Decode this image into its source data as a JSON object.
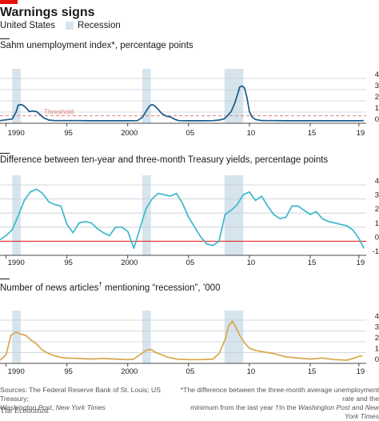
{
  "header": {
    "title": "Warnings signs",
    "legend_country": "United States",
    "legend_recession": "Recession"
  },
  "colors": {
    "recession_band": "#d6e4ee",
    "grid": "#c7ccd1",
    "zero_line": "#e3120b",
    "threshold": "#e07d7d",
    "sahm_line": "#155a8a",
    "yield_line": "#3bb8cd",
    "news_line": "#d8a64a",
    "brand_red": "#e3120b"
  },
  "recessions": [
    [
      1990.5,
      1991.2
    ],
    [
      2001.2,
      2001.9
    ],
    [
      2007.95,
      2009.5
    ]
  ],
  "x_ticks": [
    {
      "year": 1990,
      "label": "1990"
    },
    {
      "year": 1995,
      "label": "95"
    },
    {
      "year": 2000,
      "label": "2000"
    },
    {
      "year": 2005,
      "label": "05"
    },
    {
      "year": 2010,
      "label": "10"
    },
    {
      "year": 2015,
      "label": "15"
    },
    {
      "year": 2019,
      "label": "19"
    }
  ],
  "chart_data": [
    {
      "type": "line",
      "title": "Sahm unemployment index*, percentage points",
      "xlim": [
        1989.5,
        2019.6
      ],
      "ylim": [
        -0.2,
        4
      ],
      "yticks": [
        "0",
        "1",
        "2",
        "3",
        "4"
      ],
      "annotation": "Threshold",
      "threshold": 0.5,
      "series": [
        {
          "x": [
            1989.5,
            1990.5,
            1990.8,
            1991.0,
            1991.3,
            1991.6,
            1991.9,
            1992.2,
            1992.5,
            1992.8,
            1993.1,
            1993.5,
            1994.0,
            1995.0,
            1996.0,
            1997.0,
            1998.0,
            1999.0,
            2000.0,
            2000.8,
            2001.2,
            2001.5,
            2001.8,
            2002.0,
            2002.2,
            2002.5,
            2002.8,
            2003.2,
            2003.5,
            2003.9,
            2004.2,
            2005.0,
            2006.0,
            2007.0,
            2007.5,
            2007.9,
            2008.2,
            2008.5,
            2008.8,
            2009.0,
            2009.2,
            2009.4,
            2009.6,
            2009.8,
            2010.0,
            2010.2,
            2010.5,
            2011.0,
            2012.0,
            2013.0,
            2014.0,
            2015.0,
            2016.0,
            2017.0,
            2018.0,
            2019.0,
            2019.4
          ],
          "y": [
            0.05,
            0.2,
            0.8,
            1.5,
            1.55,
            1.3,
            0.9,
            0.95,
            0.9,
            0.6,
            0.3,
            0.1,
            0.05,
            0.05,
            0.05,
            0.03,
            0.03,
            0.03,
            0.03,
            0.05,
            0.35,
            0.9,
            1.45,
            1.55,
            1.45,
            1.1,
            0.7,
            0.45,
            0.4,
            0.15,
            0.05,
            0.03,
            0.03,
            0.05,
            0.1,
            0.2,
            0.5,
            0.9,
            1.7,
            2.4,
            3.2,
            3.3,
            3.1,
            2.2,
            0.9,
            0.4,
            0.15,
            0.05,
            0.05,
            0.03,
            0.03,
            0.03,
            0.03,
            0.03,
            0.03,
            0.03,
            0.05
          ]
        }
      ]
    },
    {
      "type": "line",
      "title": "Difference between ten-year and three-month Treasury yields, percentage points",
      "xlim": [
        1989.5,
        2019.6
      ],
      "ylim": [
        -1,
        4
      ],
      "yticks": [
        "-1",
        "0",
        "1",
        "2",
        "3",
        "4"
      ],
      "series": [
        {
          "x": [
            1989.5,
            1990.0,
            1990.5,
            1991.0,
            1991.5,
            1992.0,
            1992.5,
            1993.0,
            1993.5,
            1994.0,
            1994.5,
            1995.0,
            1995.5,
            1996.0,
            1996.5,
            1997.0,
            1997.5,
            1998.0,
            1998.5,
            1999.0,
            1999.5,
            2000.0,
            2000.5,
            2001.0,
            2001.5,
            2002.0,
            2002.5,
            2003.0,
            2003.5,
            2004.0,
            2004.5,
            2005.0,
            2005.5,
            2006.0,
            2006.5,
            2007.0,
            2007.5,
            2008.0,
            2008.5,
            2009.0,
            2009.5,
            2010.0,
            2010.5,
            2011.0,
            2011.5,
            2012.0,
            2012.5,
            2013.0,
            2013.5,
            2014.0,
            2014.5,
            2015.0,
            2015.5,
            2016.0,
            2016.5,
            2017.0,
            2017.5,
            2018.0,
            2018.5,
            2019.0,
            2019.4
          ],
          "y": [
            0.1,
            0.4,
            0.8,
            1.8,
            2.9,
            3.5,
            3.7,
            3.4,
            2.8,
            2.6,
            2.5,
            1.2,
            0.6,
            1.3,
            1.4,
            1.3,
            0.9,
            0.6,
            0.4,
            1.0,
            1.0,
            0.7,
            -0.5,
            0.9,
            2.3,
            3.0,
            3.4,
            3.3,
            3.2,
            3.4,
            2.7,
            1.7,
            1.0,
            0.3,
            -0.2,
            -0.3,
            0.0,
            1.9,
            2.2,
            2.6,
            3.3,
            3.5,
            2.9,
            3.2,
            2.5,
            1.9,
            1.6,
            1.7,
            2.5,
            2.5,
            2.2,
            1.9,
            2.1,
            1.6,
            1.4,
            1.3,
            1.2,
            1.1,
            0.8,
            0.2,
            -0.5
          ]
        }
      ]
    },
    {
      "type": "line",
      "title": "Number of news articles† mentioning “recession”, ’000",
      "xlim": [
        1989.5,
        2019.6
      ],
      "ylim": [
        0,
        4
      ],
      "yticks": [
        "0",
        "1",
        "2",
        "3",
        "4"
      ],
      "series": [
        {
          "x": [
            1989.5,
            1990.0,
            1990.4,
            1990.8,
            1991.2,
            1991.6,
            1992.0,
            1992.5,
            1993.0,
            1993.5,
            1994.0,
            1994.5,
            1995.0,
            1996.0,
            1997.0,
            1998.0,
            1999.0,
            2000.0,
            2000.5,
            2001.0,
            2001.5,
            2001.9,
            2002.3,
            2002.8,
            2003.2,
            2004.0,
            2005.0,
            2006.0,
            2007.0,
            2007.5,
            2008.0,
            2008.3,
            2008.6,
            2008.9,
            2009.2,
            2009.6,
            2010.0,
            2010.5,
            2011.0,
            2011.5,
            2012.0,
            2013.0,
            2014.0,
            2015.0,
            2016.0,
            2017.0,
            2018.0,
            2018.5,
            2019.0,
            2019.3
          ],
          "y": [
            0.3,
            0.8,
            2.6,
            2.9,
            2.7,
            2.6,
            2.2,
            1.8,
            1.2,
            0.9,
            0.7,
            0.55,
            0.5,
            0.45,
            0.4,
            0.45,
            0.4,
            0.35,
            0.4,
            0.8,
            1.2,
            1.3,
            1.0,
            0.8,
            0.6,
            0.4,
            0.35,
            0.35,
            0.4,
            0.9,
            2.2,
            3.5,
            3.9,
            3.3,
            2.6,
            1.9,
            1.4,
            1.2,
            1.1,
            1.0,
            0.9,
            0.6,
            0.5,
            0.4,
            0.5,
            0.35,
            0.3,
            0.45,
            0.65,
            0.7
          ]
        }
      ]
    }
  ],
  "footer": {
    "sources_1": "Sources: The Federal Reserve Bank of St. Louis; US Treasury;",
    "sources_2a": "Washington Post",
    "sources_2b": ", ",
    "sources_2c": "New York Times",
    "note_1": "*The difference between the three-month average unemployment rate and the",
    "note_2": "minimum from the last year",
    "note_3a": "†In the ",
    "note_3b": "Washington Post",
    "note_3c": " and ",
    "note_3d": "New York Times",
    "brand": "The Economist"
  }
}
